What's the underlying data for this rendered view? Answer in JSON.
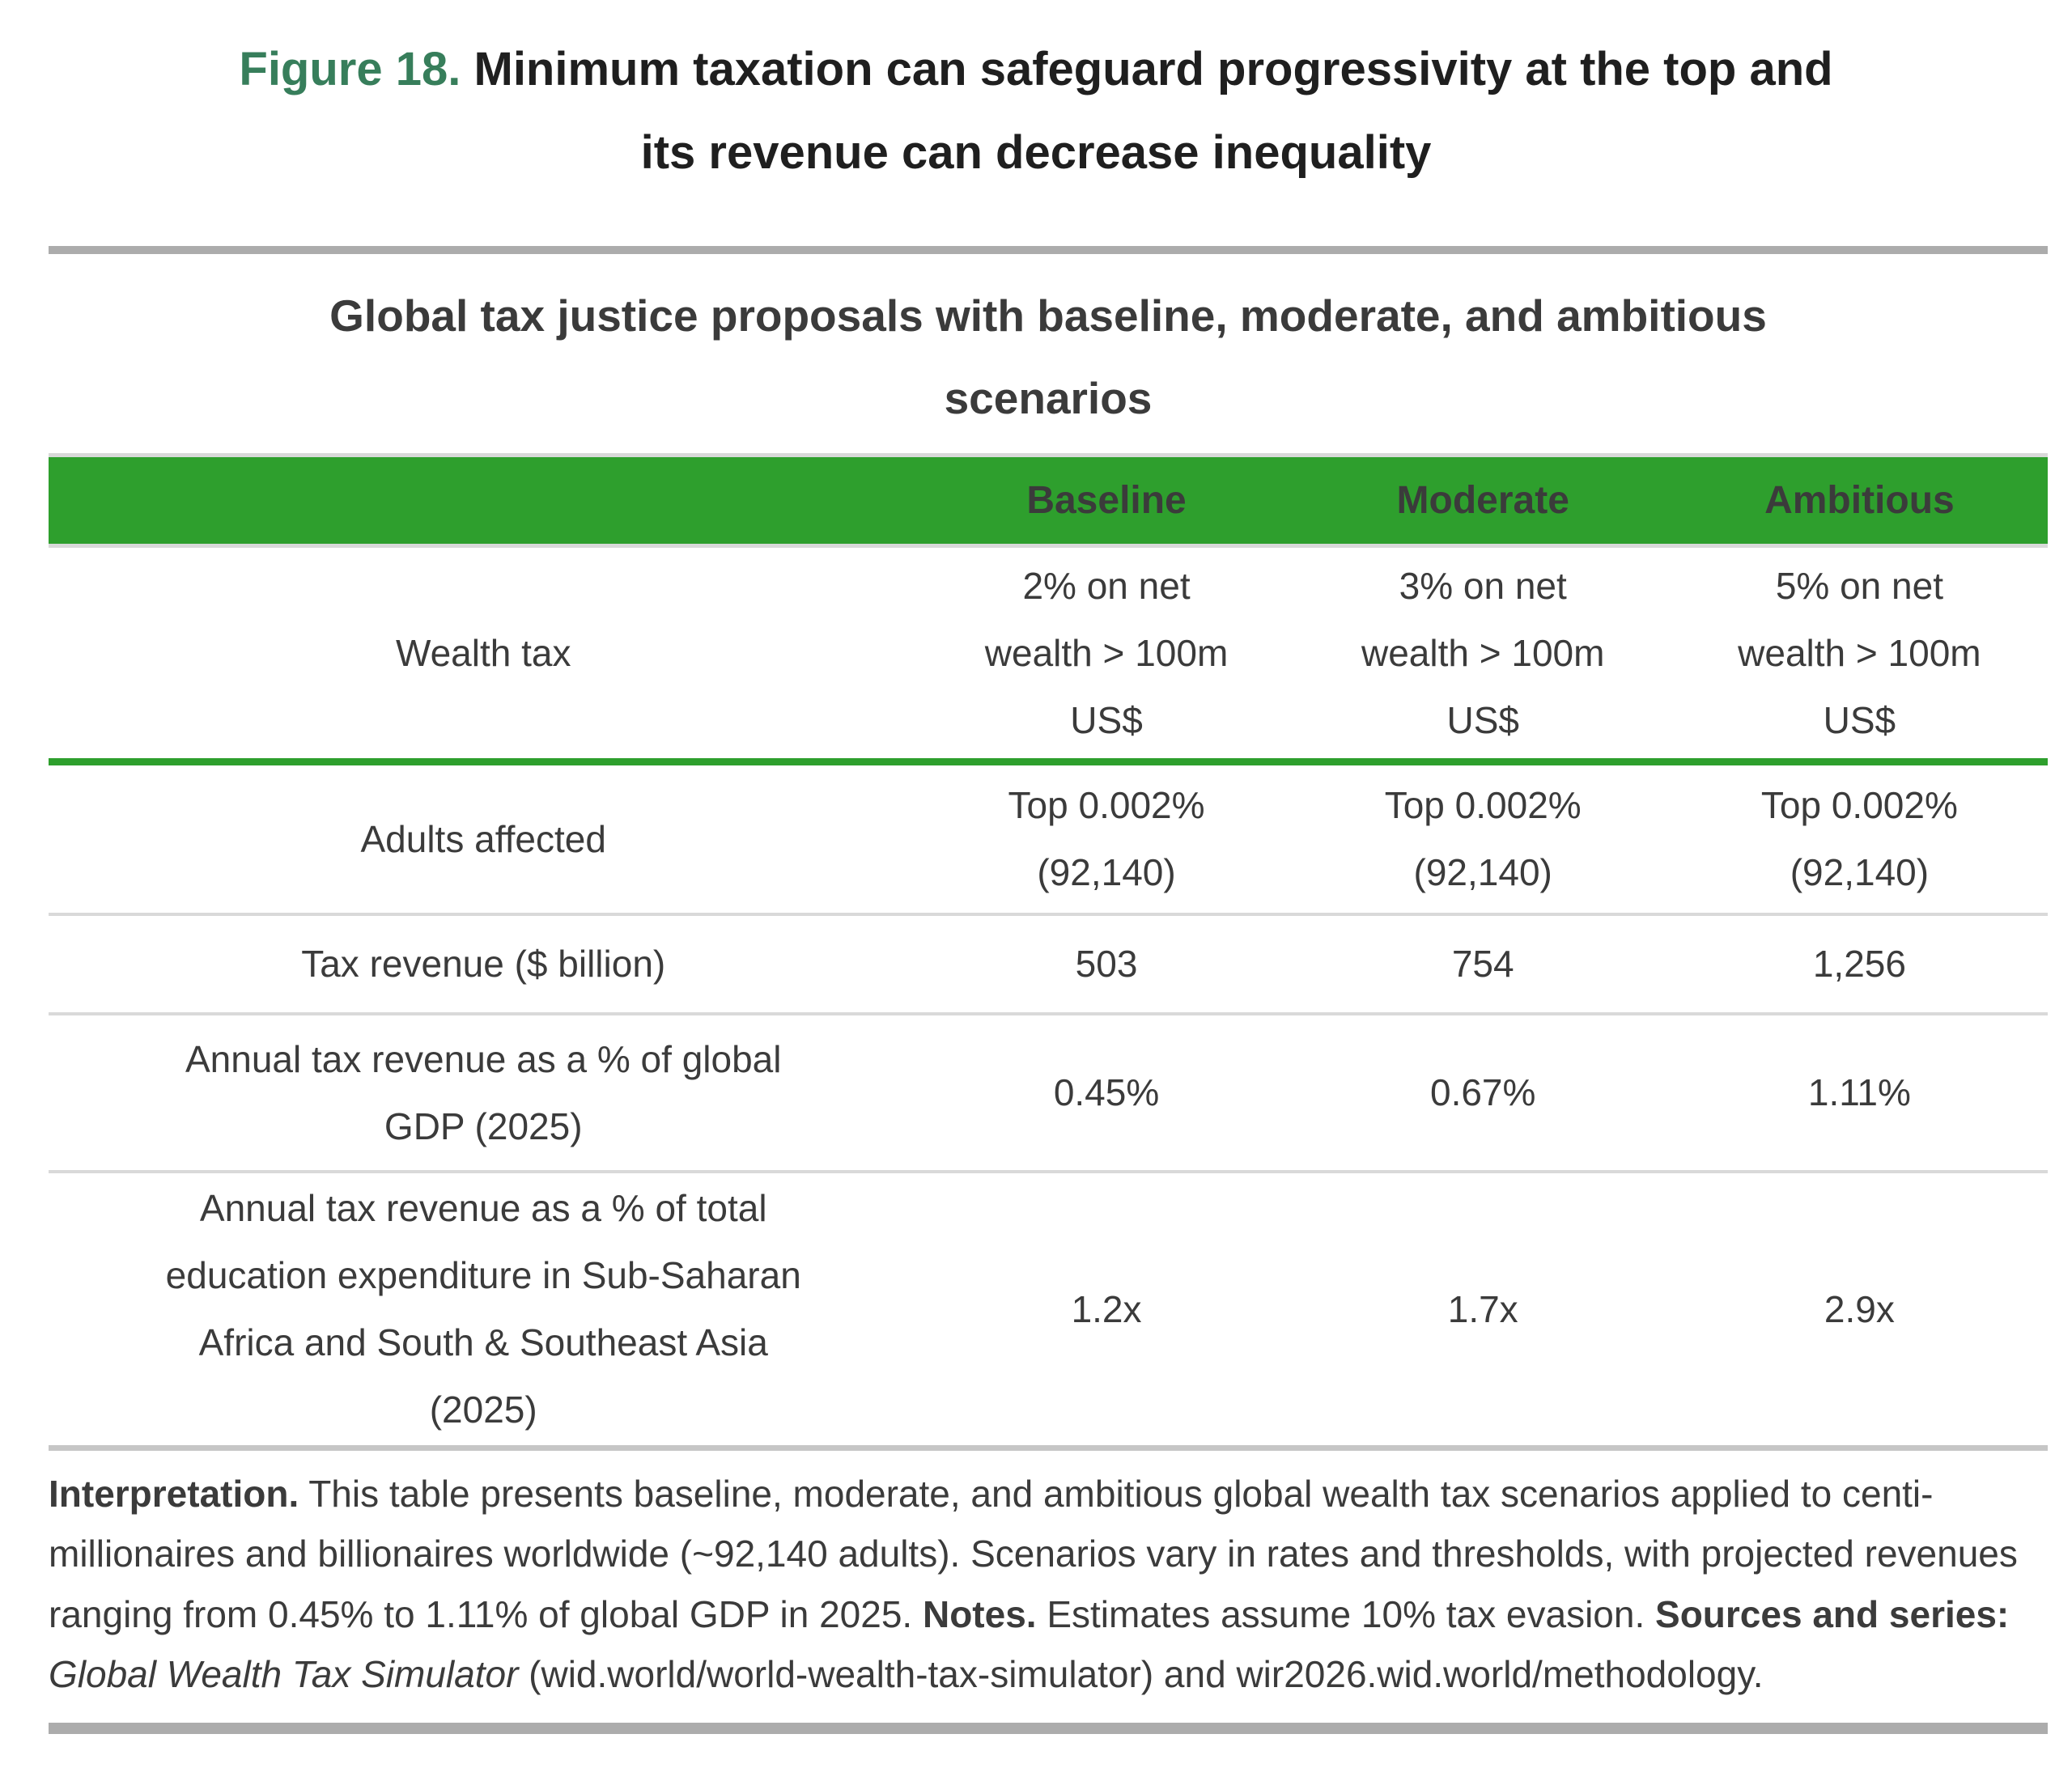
{
  "figure": {
    "label": "Figure 18.",
    "title": "Minimum taxation can safeguard progressivity at the top and\nits revenue can decrease inequality"
  },
  "table": {
    "title": "Global tax justice proposals with baseline, moderate, and ambitious\nscenarios",
    "header": {
      "columns": [
        "Baseline",
        "Moderate",
        "Ambitious"
      ]
    },
    "rows": [
      {
        "label": "Wealth tax",
        "values": [
          "2% on net\nwealth > 100m\nUS$",
          "3% on net\nwealth > 100m\nUS$",
          "5% on net\nwealth > 100m\nUS$"
        ]
      },
      {
        "label": "Adults affected",
        "values": [
          "Top 0.002%\n(92,140)",
          "Top 0.002%\n(92,140)",
          "Top 0.002%\n(92,140)"
        ]
      },
      {
        "label": "Tax revenue ($ billion)",
        "values": [
          "503",
          "754",
          "1,256"
        ]
      },
      {
        "label": "Annual tax revenue as a % of global\nGDP (2025)",
        "values": [
          "0.45%",
          "0.67%",
          "1.11%"
        ]
      },
      {
        "label": "Annual tax revenue as a % of total\neducation expenditure in Sub-Saharan\nAfrica and South & Southeast Asia\n(2025)",
        "values": [
          "1.2x",
          "1.7x",
          "2.9x"
        ]
      }
    ]
  },
  "notes": {
    "interpretation_label": "Interpretation.",
    "interpretation_text": "This table presents baseline, moderate, and ambitious global wealth tax scenarios applied to centi-millionaires and billionaires worldwide (~92,140 adults). Scenarios vary in rates and thresholds, with projected revenues ranging from 0.45% to 1.11% of global GDP in 2025.",
    "notes_label": "Notes.",
    "notes_text": "Estimates assume 10% tax evasion.",
    "sources_label": "Sources and series:",
    "sources_italic": "Global Wealth Tax Simulator",
    "sources_rest": "(wid.world/world-wealth-tax-simulator) and wir2026.wid.world/methodology."
  },
  "colors": {
    "header_green": "#2E9F2D",
    "figure_label_green": "#377E5B",
    "text_dark": "#3B3B3B",
    "title_black": "#1F1F1F",
    "rule_gray": "#ACACAC",
    "line_light": "#D9D9D9",
    "line_medium": "#C6C6C6"
  },
  "chart_data": {
    "type": "table",
    "title": "Global tax justice proposals with baseline, moderate, and ambitious scenarios",
    "columns": [
      "",
      "Baseline",
      "Moderate",
      "Ambitious"
    ],
    "rows": [
      [
        "Wealth tax",
        "2% on net wealth > 100m US$",
        "3% on net wealth > 100m US$",
        "5% on net wealth > 100m US$"
      ],
      [
        "Adults affected",
        "Top 0.002% (92,140)",
        "Top 0.002% (92,140)",
        "Top 0.002% (92,140)"
      ],
      [
        "Tax revenue ($ billion)",
        "503",
        "754",
        "1,256"
      ],
      [
        "Annual tax revenue as a % of global GDP (2025)",
        "0.45%",
        "0.67%",
        "1.11%"
      ],
      [
        "Annual tax revenue as a % of total education expenditure in Sub-Saharan Africa and South & Southeast Asia (2025)",
        "1.2x",
        "1.7x",
        "2.9x"
      ]
    ]
  }
}
